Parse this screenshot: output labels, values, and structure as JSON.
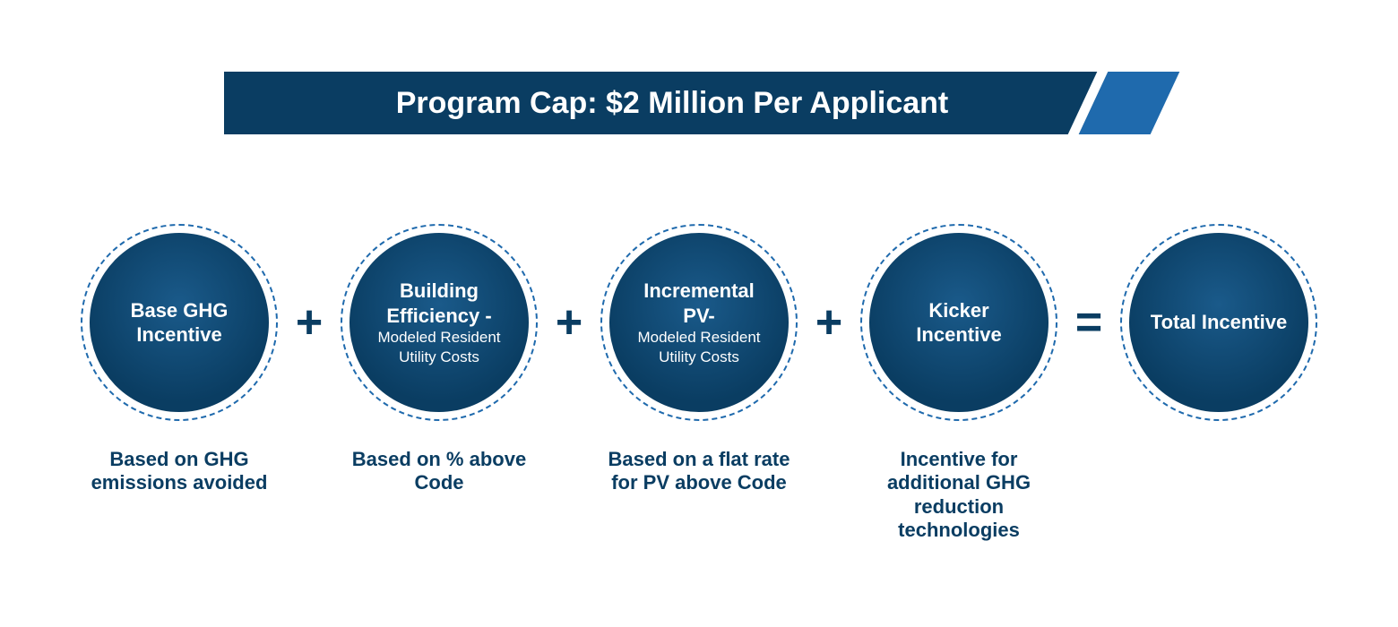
{
  "banner": {
    "text": "Program Cap: $2 Million Per Applicant",
    "bg_color": "#0a3d62",
    "accent_color": "#1f6aad",
    "text_color": "#ffffff",
    "fontsize": 34
  },
  "formula": {
    "circle_fill_center": "#1a5a8a",
    "circle_fill_edge": "#0a3d62",
    "circle_border_color": "#1f6aad",
    "circle_diameter_outer": 220,
    "circle_diameter_inner": 200,
    "operator_color": "#0a3d62",
    "caption_color": "#0a3d62",
    "caption_fontsize": 22,
    "title_fontsize": 22,
    "sub_fontsize": 17,
    "items": [
      {
        "title": "Base GHG Incentive",
        "sub": "",
        "caption": "Based on GHG emissions avoided"
      },
      {
        "title": "Building Efficiency -",
        "sub": "Modeled Resident Utility Costs",
        "caption": "Based on % above Code"
      },
      {
        "title": "Incremental PV-",
        "sub": "Modeled Resident Utility Costs",
        "caption": "Based on a flat rate for PV above Code"
      },
      {
        "title": "Kicker Incentive",
        "sub": "",
        "caption": "Incentive for additional GHG reduction technologies"
      },
      {
        "title": "Total Incentive",
        "sub": "",
        "caption": ""
      }
    ],
    "operators": [
      "+",
      "+",
      "+",
      "="
    ]
  }
}
